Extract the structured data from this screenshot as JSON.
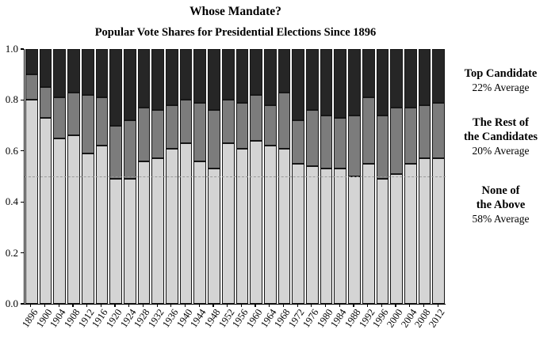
{
  "header": {
    "title": "Whose Mandate?",
    "subtitle": "Popular Vote Shares for Presidential Elections Since 1896"
  },
  "chart_data": {
    "type": "bar",
    "stacked": true,
    "title": "Whose Mandate?",
    "subtitle": "Popular Vote Shares for Presidential Elections Since 1896",
    "categories": [
      "1896",
      "1900",
      "1904",
      "1908",
      "1912",
      "1916",
      "1920",
      "1924",
      "1928",
      "1932",
      "1936",
      "1940",
      "1944",
      "1948",
      "1952",
      "1956",
      "1960",
      "1964",
      "1968",
      "1972",
      "1976",
      "1980",
      "1984",
      "1988",
      "1992",
      "1996",
      "2000",
      "2004",
      "2008",
      "2012"
    ],
    "series_order_top_to_bottom": [
      "Top Candidate",
      "The Rest of the Candidates",
      "None of the Above"
    ],
    "series": [
      {
        "name": "Top Candidate",
        "color": "#262626",
        "values": [
          0.1,
          0.15,
          0.19,
          0.17,
          0.18,
          0.19,
          0.3,
          0.28,
          0.23,
          0.24,
          0.22,
          0.2,
          0.21,
          0.24,
          0.2,
          0.21,
          0.18,
          0.22,
          0.17,
          0.28,
          0.24,
          0.26,
          0.27,
          0.26,
          0.19,
          0.26,
          0.23,
          0.23,
          0.22,
          0.21
        ]
      },
      {
        "name": "The Rest of the Candidates",
        "color": "#7c7c7c",
        "values": [
          0.1,
          0.12,
          0.16,
          0.17,
          0.23,
          0.19,
          0.21,
          0.23,
          0.21,
          0.19,
          0.17,
          0.17,
          0.23,
          0.23,
          0.17,
          0.18,
          0.18,
          0.16,
          0.22,
          0.17,
          0.22,
          0.21,
          0.2,
          0.24,
          0.26,
          0.25,
          0.26,
          0.22,
          0.21,
          0.22
        ]
      },
      {
        "name": "None of the Above",
        "color": "#d4d4d4",
        "values": [
          0.8,
          0.73,
          0.65,
          0.66,
          0.59,
          0.62,
          0.49,
          0.49,
          0.56,
          0.57,
          0.61,
          0.63,
          0.56,
          0.53,
          0.63,
          0.61,
          0.64,
          0.62,
          0.61,
          0.55,
          0.54,
          0.53,
          0.53,
          0.5,
          0.55,
          0.49,
          0.51,
          0.55,
          0.57,
          0.57
        ]
      }
    ],
    "ylim": [
      0,
      1
    ],
    "yticks": [
      1.0,
      0.8,
      0.6,
      0.4,
      0.2,
      0.0
    ],
    "reference_line": 0.5,
    "bar_edge_color": "#161616",
    "grid": false,
    "legend_position": "right-margin",
    "annotations": [
      {
        "name": "top-candidate",
        "lines": [
          "Top Candidate"
        ],
        "average": "22% Average"
      },
      {
        "name": "rest-of-candidates",
        "lines": [
          "The Rest of",
          "the Candidates"
        ],
        "average": "20% Average"
      },
      {
        "name": "none-of-above",
        "lines": [
          "None of",
          "the Above"
        ],
        "average": "58% Average"
      }
    ]
  }
}
